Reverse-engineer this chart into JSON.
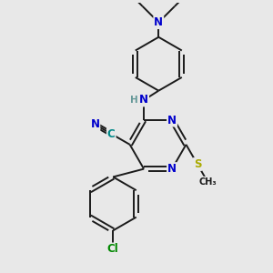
{
  "bg_color": "#e8e8e8",
  "bond_color": "#1a1a1a",
  "N_color": "#0000cc",
  "S_color": "#aaaa00",
  "Cl_color": "#008800",
  "C_color": "#008888",
  "H_color": "#669999",
  "figsize": [
    3.0,
    3.0
  ],
  "dpi": 100,
  "xlim": [
    0,
    10
  ],
  "ylim": [
    0,
    10
  ]
}
